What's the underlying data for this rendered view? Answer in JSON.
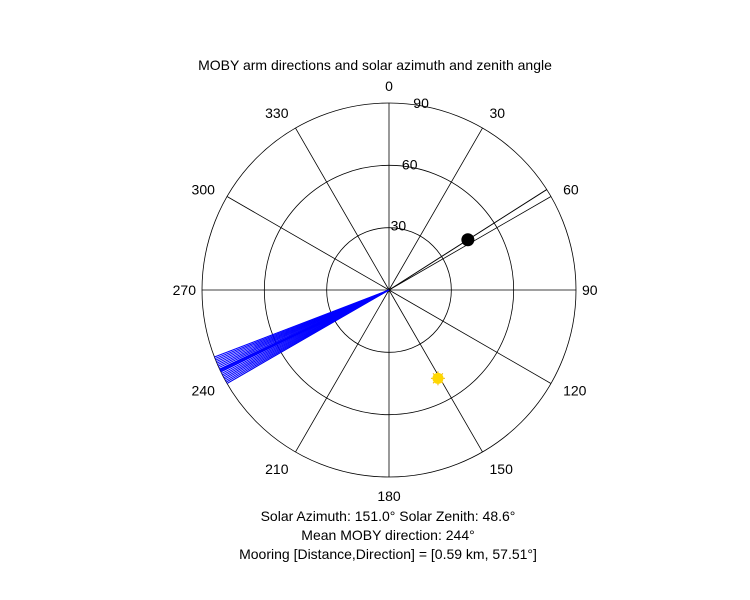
{
  "chart_data": {
    "type": "polar",
    "title": "MOBY arm directions and solar azimuth and zenith angle",
    "angle_zero": "top",
    "angle_direction": "clockwise",
    "angular_ticks": [
      0,
      30,
      60,
      90,
      120,
      150,
      180,
      210,
      240,
      270,
      300,
      330
    ],
    "radial_ticks": [
      30,
      60,
      90
    ],
    "rlim": [
      0,
      90
    ],
    "grid": true,
    "series": [
      {
        "kind": "arm-lines",
        "color": "#0000ff",
        "angles": [
          240.0,
          240.5,
          241.0,
          241.5,
          242.0,
          242.5,
          243.0,
          243.5,
          244.0,
          244.2,
          244.5,
          244.8,
          245.0,
          245.5,
          246.0,
          246.5,
          247.0,
          247.5,
          248.0,
          248.5,
          249.0
        ],
        "r": 90
      },
      {
        "kind": "mooring-line",
        "color": "#000000",
        "angle": 57.51,
        "r": 90
      },
      {
        "kind": "mooring-marker",
        "color": "#000000",
        "angle": 57.51,
        "r": 45
      },
      {
        "kind": "sun-marker",
        "color": "#ffd700",
        "angle": 151.0,
        "r": 48.6
      }
    ],
    "captions": [
      "Solar Azimuth: 151.0°    Solar Zenith: 48.6°",
      "Mean MOBY direction: 244°",
      "Mooring [Distance,Direction] = [0.59 km, 57.51°]"
    ]
  }
}
